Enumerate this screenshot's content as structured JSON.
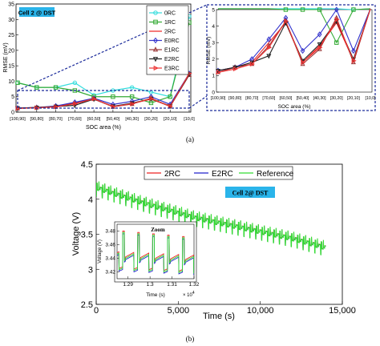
{
  "chart_data": [
    {
      "type": "line",
      "panel_label": "(a)",
      "badge": "Cell 2 @ DST",
      "ylabel": "RMSE (mV)",
      "xlabel": "SOC area (%)",
      "ylim": [
        0,
        35
      ],
      "yticks": [
        0,
        5,
        10,
        15,
        20,
        25,
        30,
        35
      ],
      "categories": [
        "[100,90]",
        "[90,80]",
        "[80,70]",
        "[70,60]",
        "[60,50]",
        "[50,40]",
        "[40,30]",
        "[30,20]",
        "[20,10]",
        "[10,0]"
      ],
      "series": [
        {
          "name": "0RC",
          "color": "#33dddd",
          "marker": "circle",
          "values": [
            9.5,
            8,
            8,
            9.5,
            5.5,
            7,
            8,
            6.5,
            5,
            31
          ]
        },
        {
          "name": "1RC",
          "color": "#33aa33",
          "marker": "square",
          "values": [
            9.5,
            8,
            8,
            7,
            5,
            5,
            5,
            3,
            5,
            29
          ]
        },
        {
          "name": "2RC",
          "color": "#ee2222",
          "marker": "none",
          "values": [
            1.3,
            1.5,
            1.8,
            3,
            4.2,
            1.8,
            2.8,
            4.2,
            1.9,
            12.5
          ]
        },
        {
          "name": "E0RC",
          "color": "#3333cc",
          "marker": "diamond",
          "values": [
            1.3,
            1.5,
            2,
            3.2,
            4.5,
            2.5,
            3.5,
            5,
            2.5,
            12.5
          ]
        },
        {
          "name": "E1RC",
          "color": "#993333",
          "marker": "triangle-up",
          "values": [
            1.2,
            1.5,
            1.7,
            2.8,
            4.3,
            1.7,
            2.6,
            4.5,
            1.8,
            12
          ]
        },
        {
          "name": "E2RC",
          "color": "#222222",
          "marker": "triangle-down",
          "values": [
            1.3,
            1.5,
            1.8,
            2.2,
            4.2,
            1.9,
            2.9,
            4.3,
            2,
            12.3
          ]
        },
        {
          "name": "E3RC",
          "color": "#ee3333",
          "marker": "triangle-right",
          "values": [
            1.2,
            1.4,
            1.7,
            2.7,
            4.3,
            1.8,
            2.7,
            4.4,
            1.9,
            12.5
          ]
        }
      ],
      "inset": {
        "ylabel": "RMSE (mV)",
        "xlabel": "SOC area (%)",
        "ylim": [
          0,
          5
        ],
        "yticks": [
          0,
          1,
          2,
          3,
          4,
          5
        ]
      }
    },
    {
      "type": "line",
      "panel_label": "(b)",
      "badge": "Cell 2@ DST",
      "ylabel": "Voltage (V)",
      "xlabel": "Time (s)",
      "xlim": [
        0,
        15000
      ],
      "xticks": [
        0,
        5000,
        10000,
        15000
      ],
      "xtick_labels": [
        "0",
        "5,000",
        "10,000",
        "15,000"
      ],
      "ylim": [
        2.5,
        4.5
      ],
      "yticks": [
        2.5,
        3,
        3.5,
        4,
        4.5
      ],
      "ytick_labels": [
        "2.5",
        "3",
        "3.5",
        "4",
        "4.5"
      ],
      "legend": "top-right",
      "series": [
        {
          "name": "2RC",
          "color": "#ee2222"
        },
        {
          "name": "E2RC",
          "color": "#2222cc"
        },
        {
          "name": "Reference",
          "color": "#33dd33"
        }
      ],
      "trend": {
        "x": [
          0,
          1000,
          3000,
          6000,
          9000,
          12000,
          14000
        ],
        "y": [
          4.18,
          4.1,
          3.95,
          3.75,
          3.6,
          3.45,
          3.32
        ]
      },
      "end_time": 14000,
      "inset": {
        "title": "Zoom",
        "ylabel": "Voltage (V)",
        "xlabel": "Time (s)",
        "xlim": [
          1.285,
          1.32
        ],
        "xticks": [
          1.29,
          1.3,
          1.31,
          1.32
        ],
        "ylim": [
          3.41,
          3.49
        ],
        "yticks": [
          3.42,
          3.44,
          3.46,
          3.48
        ],
        "x_multiplier": "× 10",
        "x_exponent": "4"
      }
    }
  ]
}
